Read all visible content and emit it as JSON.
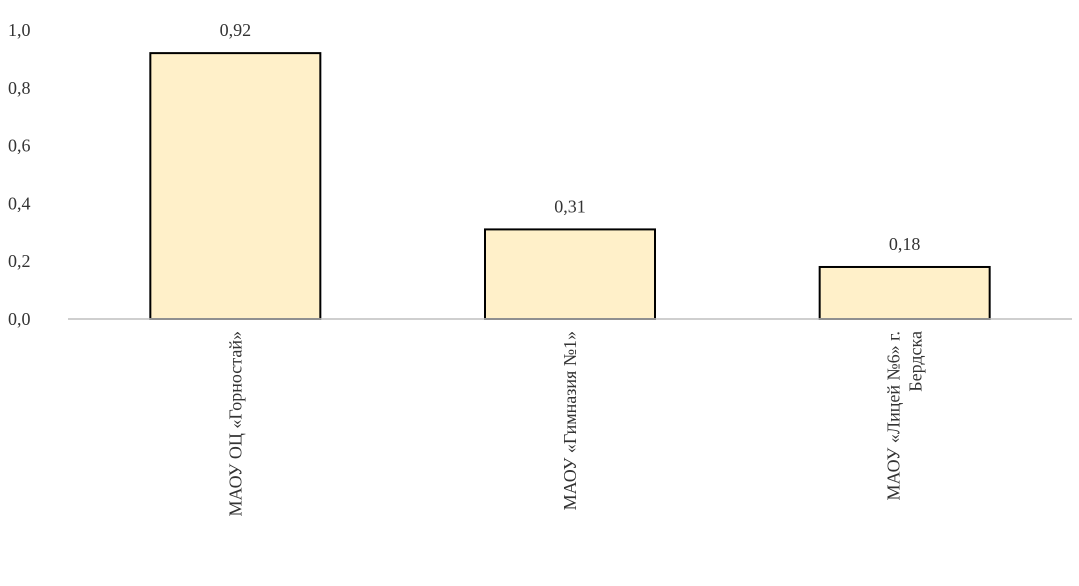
{
  "chart_data": {
    "type": "bar",
    "categories": [
      [
        "МАОУ ОЦ «Горностай»"
      ],
      [
        "МАОУ «Гимназия №1»"
      ],
      [
        "МАОУ «Лицей №6» г.",
        "Бердска"
      ]
    ],
    "values": [
      0.92,
      0.31,
      0.18
    ],
    "data_labels": [
      "0,92",
      "0,31",
      "0,18"
    ],
    "ylim": [
      0,
      1.0
    ],
    "yticks": [
      0.0,
      0.2,
      0.4,
      0.6,
      0.8,
      1.0
    ],
    "ytick_labels": [
      "0,0",
      "0,2",
      "0,4",
      "0,6",
      "0,8",
      "1,0"
    ],
    "title": "",
    "xlabel": "",
    "ylabel": "",
    "grid": false,
    "legend": "none",
    "colors": {
      "bar_fill": "#FFF0C9",
      "bar_stroke": "#000000",
      "axis": "#BFBFBF",
      "text": "#333333"
    }
  }
}
